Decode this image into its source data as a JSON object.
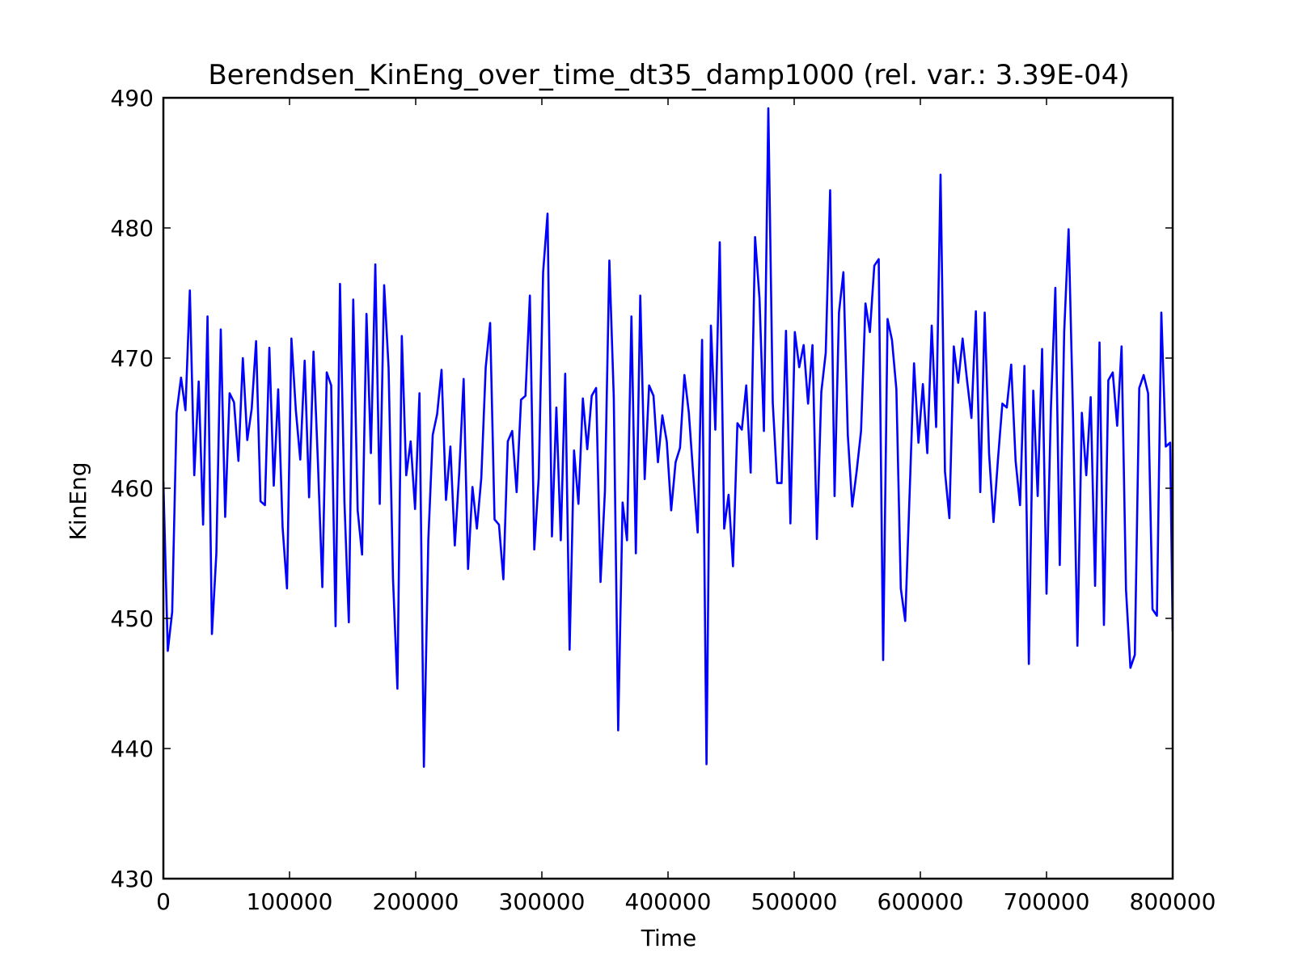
{
  "chart_data": {
    "type": "line",
    "title": "Berendsen_KinEng_over_time_dt35_damp1000 (rel. var.: 3.39E-04)",
    "xlabel": "Time",
    "ylabel": "KinEng",
    "xlim": [
      0,
      800000
    ],
    "ylim": [
      430,
      490
    ],
    "x_ticks": [
      0,
      100000,
      200000,
      300000,
      400000,
      500000,
      600000,
      700000,
      800000
    ],
    "x_tick_labels": [
      "0",
      "100000",
      "200000",
      "300000",
      "400000",
      "500000",
      "600000",
      "700000",
      "800000"
    ],
    "y_ticks": [
      430,
      440,
      450,
      460,
      470,
      480,
      490
    ],
    "y_tick_labels": [
      "430",
      "440",
      "450",
      "460",
      "470",
      "480",
      "490"
    ],
    "grid": false,
    "series": [
      {
        "color": "#0000ff",
        "x": [
          0,
          3500,
          7000,
          10500,
          14000,
          17500,
          21000,
          24500,
          28000,
          31500,
          35000,
          38500,
          42000,
          45500,
          49000,
          52500,
          56000,
          59500,
          63000,
          66500,
          70000,
          73500,
          77000,
          80500,
          84000,
          87500,
          91000,
          94500,
          98000,
          101500,
          105000,
          108500,
          112000,
          115500,
          119000,
          122500,
          126000,
          129500,
          133000,
          136500,
          140000,
          143500,
          147000,
          150500,
          154000,
          157500,
          161000,
          164500,
          168000,
          171500,
          175000,
          178500,
          182000,
          185500,
          189000,
          192500,
          196000,
          199500,
          203000,
          206500,
          210000,
          213500,
          217000,
          220500,
          224000,
          227500,
          231000,
          234500,
          238000,
          241500,
          245000,
          248500,
          252000,
          255500,
          259000,
          262500,
          266000,
          269500,
          273000,
          276500,
          280000,
          283500,
          287000,
          290500,
          294000,
          297500,
          301000,
          304500,
          308000,
          311500,
          315000,
          318500,
          322000,
          325500,
          329000,
          332500,
          336000,
          339500,
          343000,
          346500,
          350000,
          353500,
          357000,
          360500,
          364000,
          367500,
          371000,
          374500,
          378000,
          381500,
          385000,
          388500,
          392000,
          395500,
          399000,
          402500,
          406000,
          409500,
          413000,
          416500,
          420000,
          423500,
          427000,
          430500,
          434000,
          437500,
          441000,
          444500,
          448000,
          451500,
          455000,
          458500,
          462000,
          465500,
          469000,
          472500,
          476000,
          479500,
          483000,
          486500,
          490000,
          493500,
          497000,
          500500,
          504000,
          507500,
          511000,
          514500,
          518000,
          521500,
          525000,
          528500,
          532000,
          535500,
          539000,
          542500,
          546000,
          549500,
          553000,
          556500,
          560000,
          563500,
          567000,
          570500,
          574000,
          577500,
          581000,
          584500,
          588000,
          591500,
          595000,
          598500,
          602000,
          605500,
          609000,
          612500,
          616000,
          619500,
          623000,
          626500,
          630000,
          633500,
          637000,
          640500,
          644000,
          647500,
          651000,
          654500,
          658000,
          661500,
          665000,
          668500,
          672000,
          675500,
          679000,
          682500,
          686000,
          689500,
          693000,
          696500,
          700000,
          703500,
          707000,
          710500,
          714000,
          717500,
          721000,
          724500,
          728000,
          731500,
          735000,
          738500,
          742000,
          745500,
          749000,
          752500,
          756000,
          759500,
          763000,
          766500,
          770000,
          773500,
          777000,
          780500,
          784000,
          787500,
          791000,
          794500,
          798000,
          800000
        ],
        "y": [
          460.5,
          447.5,
          450.5,
          465.8,
          468.5,
          466.0,
          475.2,
          461.0,
          468.2,
          457.2,
          473.2,
          448.8,
          455.0,
          472.2,
          457.8,
          467.3,
          466.6,
          462.1,
          470.0,
          463.7,
          466.1,
          471.3,
          459.0,
          458.7,
          470.8,
          460.2,
          467.6,
          457.0,
          452.3,
          471.5,
          466.0,
          462.2,
          469.8,
          459.3,
          470.5,
          462.0,
          452.4,
          468.9,
          467.9,
          449.4,
          475.7,
          459.0,
          449.7,
          474.5,
          458.3,
          454.9,
          473.4,
          462.7,
          477.2,
          458.8,
          475.6,
          469.3,
          453.1,
          444.6,
          471.7,
          461.0,
          463.6,
          458.4,
          467.3,
          438.6,
          456.0,
          464.1,
          465.7,
          469.1,
          459.1,
          463.2,
          455.6,
          461.2,
          468.4,
          453.8,
          460.1,
          456.9,
          460.8,
          469.3,
          472.7,
          457.6,
          457.2,
          453.0,
          463.6,
          464.4,
          459.7,
          466.8,
          467.1,
          474.8,
          455.3,
          460.8,
          476.6,
          481.1,
          456.3,
          466.2,
          456.0,
          468.8,
          447.6,
          462.9,
          458.8,
          466.9,
          463.0,
          467.1,
          467.7,
          452.8,
          459.8,
          477.5,
          467.0,
          441.4,
          458.9,
          456.0,
          473.2,
          455.0,
          474.8,
          460.7,
          467.9,
          467.1,
          462.0,
          465.6,
          463.6,
          458.3,
          462.0,
          463.1,
          468.7,
          465.8,
          461.0,
          456.6,
          471.4,
          438.8,
          472.5,
          464.5,
          478.9,
          456.9,
          459.5,
          454.0,
          465.0,
          464.5,
          467.9,
          461.2,
          479.3,
          474.6,
          464.4,
          489.2,
          466.6,
          460.4,
          460.4,
          472.1,
          457.3,
          472.0,
          469.3,
          471.0,
          466.5,
          471.0,
          456.1,
          467.4,
          470.4,
          482.9,
          459.4,
          473.5,
          476.6,
          464.1,
          458.6,
          461.3,
          464.4,
          474.2,
          472.0,
          477.1,
          477.6,
          446.8,
          473.0,
          471.4,
          467.6,
          452.3,
          449.8,
          459.6,
          469.6,
          463.5,
          468.0,
          462.7,
          472.5,
          464.7,
          484.1,
          461.3,
          457.7,
          470.9,
          468.1,
          471.5,
          468.3,
          465.4,
          473.6,
          459.7,
          473.5,
          462.6,
          457.4,
          462.2,
          466.5,
          466.2,
          469.5,
          462.1,
          458.7,
          469.4,
          446.5,
          467.5,
          459.4,
          470.7,
          451.9,
          466.2,
          475.4,
          454.1,
          472.0,
          479.9,
          465.6,
          447.9,
          465.8,
          461.0,
          467.0,
          452.5,
          471.2,
          449.5,
          468.3,
          468.9,
          464.8,
          470.9,
          452.2,
          446.2,
          447.2,
          467.7,
          468.7,
          467.3,
          450.7,
          450.2,
          473.5,
          463.2,
          463.5,
          449.0
        ]
      }
    ]
  }
}
